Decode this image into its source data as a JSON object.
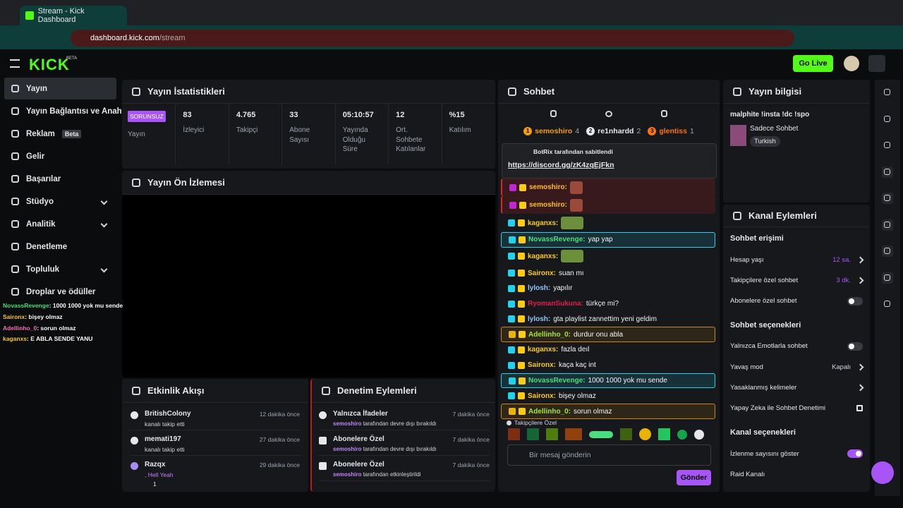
{
  "browser": {
    "tab_title": "Stream - Kick Dashboard",
    "url_host": "dashboard.kick.com",
    "url_path": "/stream"
  },
  "topbar": {
    "logo": "KICK",
    "logo_badge": "BETA",
    "go_live": "Go Live"
  },
  "sidebar": {
    "items": [
      {
        "label": "Yayın",
        "active": true
      },
      {
        "label": "Yayın Bağlantısı ve Anahtarı"
      },
      {
        "label": "Reklam",
        "badge": "Beta"
      },
      {
        "label": "Gelir"
      },
      {
        "label": "Başarılar"
      },
      {
        "label": "Stüdyo",
        "expandable": true
      },
      {
        "label": "Analitik",
        "expandable": true
      },
      {
        "label": "Denetleme"
      },
      {
        "label": "Topluluk",
        "expandable": true
      },
      {
        "label": "Droplar ve ödüller"
      }
    ]
  },
  "overlay_chat": [
    {
      "user": "NovassRevenge",
      "text": ": 1000 1000 yok mu sende",
      "color": "#4ade80"
    },
    {
      "user": "Saironx",
      "text": ": bişey olmaz",
      "color": "#facc15"
    },
    {
      "user": "Adellinho_0",
      "text": ": sorun olmaz",
      "color": "#f472b6"
    },
    {
      "user": "kaganxs",
      "text": ": E ABLA SENDE YANU",
      "color": "#facc15"
    }
  ],
  "stats": {
    "title": "Yayın İstatistikleri",
    "status": "SORUNSUZ",
    "status_label": "Yayın",
    "items": [
      {
        "value": "83",
        "label": "İzleyici"
      },
      {
        "value": "4.765",
        "label": "Takipçi"
      },
      {
        "value": "33",
        "label": "Abone Sayısı"
      },
      {
        "value": "05:10:57",
        "label": "Yayında Olduğu Süre"
      },
      {
        "value": "12",
        "label": "Ort. Sohbete Katılanlar"
      },
      {
        "value": "%15",
        "label": "Katılım"
      }
    ]
  },
  "preview": {
    "title": "Yayın Ön İzlemesi"
  },
  "activity": {
    "title": "Etkinlik Akışı",
    "events": [
      {
        "user": "BritishColony",
        "text": "kanalı takip etti",
        "time": "12 dakika önce"
      },
      {
        "user": "memati197",
        "text": "kanalı takip etti",
        "time": "27 dakika önce"
      },
      {
        "user": "Razqx",
        "text": ", Hell Yeah",
        "time": "29 dakika önce",
        "count": "1"
      }
    ]
  },
  "moderation": {
    "title": "Denetim Eylemleri",
    "actions": [
      {
        "title": "Yalnızca İfadeler",
        "user": "semoshiro",
        "text": "tarafından devre dışı bırakıldı",
        "time": "7 dakika önce"
      },
      {
        "title": "Abonelere Özel",
        "user": "semoshiro",
        "text": "tarafından devre dışı bırakıldı",
        "time": "7 dakika önce"
      },
      {
        "title": "Abonelere Özel",
        "user": "semoshiro",
        "text": "tarafından etkinleştirildi",
        "time": "7 dakika önce"
      }
    ]
  },
  "chat": {
    "title": "Sohbet",
    "top": [
      {
        "rank": "1",
        "user": "semoshiro",
        "count": "4",
        "color": "#f59e0b"
      },
      {
        "rank": "2",
        "user": "re1nhardd",
        "count": "2",
        "color": "#e5e7eb"
      },
      {
        "rank": "3",
        "user": "glentiss",
        "count": "1",
        "color": "#f97316"
      }
    ],
    "pinned": {
      "by": "BotRix tarafından sabitlendi",
      "link": "https://discord.gg/zK4zqEjFkn"
    },
    "messages": [
      {
        "user": "semoshiro:",
        "color": "#fbbf24",
        "emote": true,
        "highlight": "#7f1d1d"
      },
      {
        "user": "semoshiro:",
        "color": "#fbbf24",
        "emote": true,
        "highlight": "#7f1d1d"
      },
      {
        "user": "kaganxs:",
        "color": "#facc15",
        "emote": true
      },
      {
        "user": "NovassRevenge:",
        "text": "yap yap",
        "color": "#4ade80",
        "border": "#22d3ee"
      },
      {
        "user": "kaganxs:",
        "color": "#facc15",
        "emote": true
      },
      {
        "user": "Saironx:",
        "text": "suan mı",
        "color": "#facc15"
      },
      {
        "user": "lylosh:",
        "text": "yapılır",
        "color": "#93c5fd"
      },
      {
        "user": "RyomanSukuna:",
        "text": "türkçe mi?",
        "color": "#e11d48"
      },
      {
        "user": "lylosh:",
        "text": "gta playlist zannettim yeni geldim",
        "color": "#93c5fd"
      },
      {
        "user": "Adellinho_0:",
        "text": "durdur onu abla",
        "color": "#a3e635",
        "border": "#ca8a04"
      },
      {
        "user": "kaganxs:",
        "text": "fazla deıl",
        "color": "#facc15"
      },
      {
        "user": "Saironx:",
        "text": "kaça kaç int",
        "color": "#facc15"
      },
      {
        "user": "NovassRevenge:",
        "text": "1000 1000 yok mu sende",
        "color": "#4ade80",
        "border": "#22d3ee"
      },
      {
        "user": "Saironx:",
        "text": "bişey olmaz",
        "color": "#facc15"
      },
      {
        "user": "Adellinho_0:",
        "text": "sorun olmaz",
        "color": "#a3e635",
        "border": "#ca8a04"
      }
    ],
    "followers_only": "Takipçilere Özel",
    "input_placeholder": "Bir mesaj gönderin",
    "send": "Gönder"
  },
  "stream_info": {
    "title": "Yayın bilgisi",
    "stream_title": "malphite !insta !dc !spo",
    "category": "Sadece Sohbet",
    "tag": "Turkish"
  },
  "channel_actions": {
    "title": "Kanal Eylemleri",
    "sections": [
      {
        "title": "Sohbet erişimi",
        "rows": [
          {
            "label": "Hesap yaşı",
            "value": "12 sa.",
            "control": "chevron"
          },
          {
            "label": "Takipçilere özel sohbet",
            "value": "3 dk.",
            "control": "chevron"
          },
          {
            "label": "Abonelere özel sohbet",
            "control": "toggle",
            "on": false
          }
        ]
      },
      {
        "title": "Sohbet seçenekleri",
        "rows": [
          {
            "label": "Yalnızca Emotlarla sohbet",
            "control": "toggle",
            "on": false
          },
          {
            "label": "Yavaş mod",
            "value": "Kapalı",
            "control": "chevron"
          },
          {
            "label": "Yasaklanmış kelimeler",
            "control": "chevron"
          },
          {
            "label": "Yapay Zeka ile Sohbet Denetimi",
            "control": "external"
          }
        ]
      },
      {
        "title": "Kanal seçenekleri",
        "rows": [
          {
            "label": "İzlenme sayısını göster",
            "control": "toggle",
            "on": true
          },
          {
            "label": "Raid Kanalı"
          }
        ]
      }
    ]
  }
}
